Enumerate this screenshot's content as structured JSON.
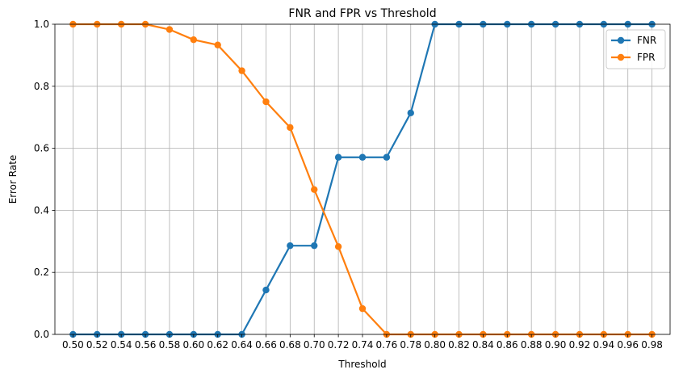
{
  "chart_data": {
    "type": "line",
    "title": "FNR and FPR vs Threshold",
    "xlabel": "Threshold",
    "ylabel": "Error Rate",
    "ylim": [
      0,
      1.0
    ],
    "xlim": [
      0.485,
      0.995
    ],
    "yticks": [
      "0.0",
      "0.2",
      "0.4",
      "0.6",
      "0.8",
      "1.0"
    ],
    "ytick_values": [
      0,
      0.2,
      0.4,
      0.6,
      0.8,
      1.0
    ],
    "x": [
      0.5,
      0.52,
      0.54,
      0.56,
      0.58,
      0.6,
      0.62,
      0.64,
      0.66,
      0.68,
      0.7,
      0.72,
      0.74,
      0.76,
      0.78,
      0.8,
      0.82,
      0.84,
      0.86,
      0.88,
      0.9,
      0.92,
      0.94,
      0.96,
      0.98
    ],
    "xtick_labels": [
      "0.50",
      "0.52",
      "0.54",
      "0.56",
      "0.58",
      "0.60",
      "0.62",
      "0.64",
      "0.66",
      "0.68",
      "0.70",
      "0.72",
      "0.74",
      "0.76",
      "0.78",
      "0.80",
      "0.82",
      "0.84",
      "0.86",
      "0.88",
      "0.90",
      "0.92",
      "0.94",
      "0.96",
      "0.98"
    ],
    "grid": true,
    "legend_position": "top-right",
    "series": [
      {
        "name": "FNR",
        "color": "#1f77b4",
        "values": [
          0,
          0,
          0,
          0,
          0,
          0,
          0,
          0,
          0.143,
          0.286,
          0.286,
          0.571,
          0.571,
          0.571,
          0.714,
          1.0,
          1.0,
          1.0,
          1.0,
          1.0,
          1.0,
          1.0,
          1.0,
          1.0,
          1.0
        ]
      },
      {
        "name": "FPR",
        "color": "#ff7f0e",
        "values": [
          1.0,
          1.0,
          1.0,
          1.0,
          0.983,
          0.95,
          0.933,
          0.85,
          0.75,
          0.667,
          0.467,
          0.283,
          0.083,
          0,
          0,
          0,
          0,
          0,
          0,
          0,
          0,
          0,
          0,
          0,
          0
        ]
      }
    ]
  }
}
